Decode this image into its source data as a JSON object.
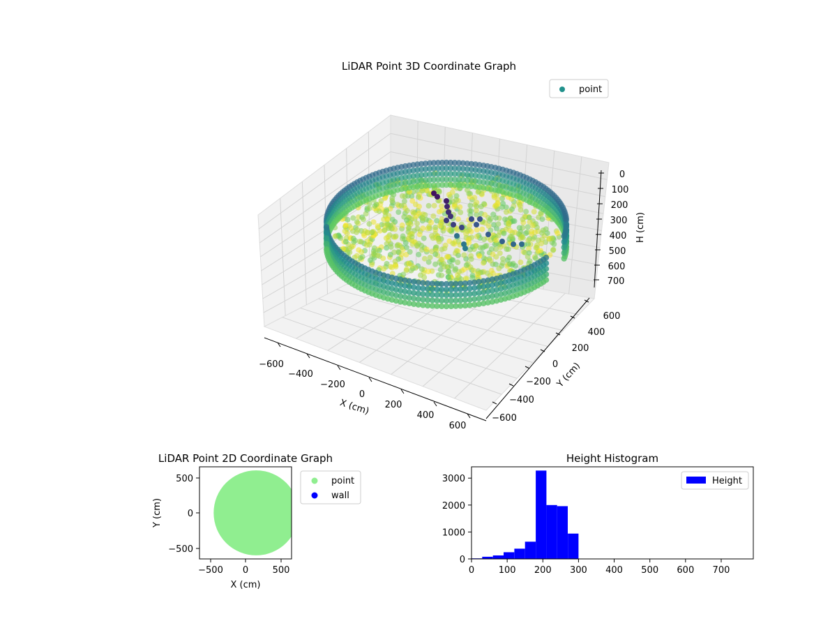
{
  "chart_data": [
    {
      "type": "scatter",
      "projection": "3d",
      "title": "LiDAR Point 3D Coordinate Graph",
      "xlabel": "X (cm)",
      "ylabel": "Y (cm)",
      "zlabel": "H (cm)",
      "xticks": [
        "−600",
        "−400",
        "−200",
        "0",
        "200",
        "400",
        "600"
      ],
      "yticks": [
        "600",
        "400",
        "200",
        "0",
        "−200",
        "−400",
        "−600"
      ],
      "zticks": [
        "0",
        "100",
        "200",
        "300",
        "400",
        "500",
        "600",
        "700"
      ],
      "xlim": [
        -650,
        650
      ],
      "ylim": [
        -650,
        650
      ],
      "zlim": [
        750,
        0
      ],
      "z_axis_inverted": true,
      "grid": true,
      "colormap": "viridis",
      "legend": {
        "entries": [
          "point"
        ],
        "placement": "top-right",
        "color": "#21918c"
      },
      "series": [
        {
          "name": "point",
          "description_values": {
            "wall_ring_radius": 600,
            "wall_height_range": [
              0,
              300
            ],
            "floor_height_range": [
              150,
              250
            ]
          }
        }
      ]
    },
    {
      "type": "scatter",
      "title": "LiDAR Point 2D Coordinate Graph",
      "xlabel": "X (cm)",
      "ylabel": "Y (cm)",
      "xticks": [
        "−500",
        "0",
        "500"
      ],
      "yticks": [
        "500",
        "0",
        "−500"
      ],
      "xlim": [
        -650,
        650
      ],
      "ylim": [
        -650,
        650
      ],
      "legend": {
        "placement": "outside-right",
        "entries": [
          {
            "name": "point",
            "color": "#90ee90"
          },
          {
            "name": "wall",
            "color": "#0000ff"
          }
        ]
      },
      "series": [
        {
          "name": "point",
          "color": "#90ee90",
          "shape": "disc",
          "center": [
            150,
            0
          ],
          "radius": 600
        },
        {
          "name": "wall",
          "color": "#0000ff",
          "points": []
        }
      ]
    },
    {
      "type": "bar",
      "subtype": "histogram",
      "title": "Height Histogram",
      "xticks": [
        "0",
        "100",
        "200",
        "300",
        "400",
        "500",
        "600",
        "700"
      ],
      "yticks": [
        "0",
        "1000",
        "2000",
        "3000"
      ],
      "xlim": [
        0,
        790
      ],
      "ylim": [
        0,
        3420
      ],
      "color": "#0000ff",
      "legend": {
        "entries": [
          "Height"
        ],
        "placement": "top-right"
      },
      "bin_width": 30,
      "bins": [
        {
          "x0": 0,
          "count": 20
        },
        {
          "x0": 30,
          "count": 80
        },
        {
          "x0": 60,
          "count": 130
        },
        {
          "x0": 90,
          "count": 250
        },
        {
          "x0": 120,
          "count": 380
        },
        {
          "x0": 150,
          "count": 640
        },
        {
          "x0": 180,
          "count": 3280
        },
        {
          "x0": 210,
          "count": 2000
        },
        {
          "x0": 240,
          "count": 1960
        },
        {
          "x0": 270,
          "count": 940
        }
      ]
    }
  ]
}
